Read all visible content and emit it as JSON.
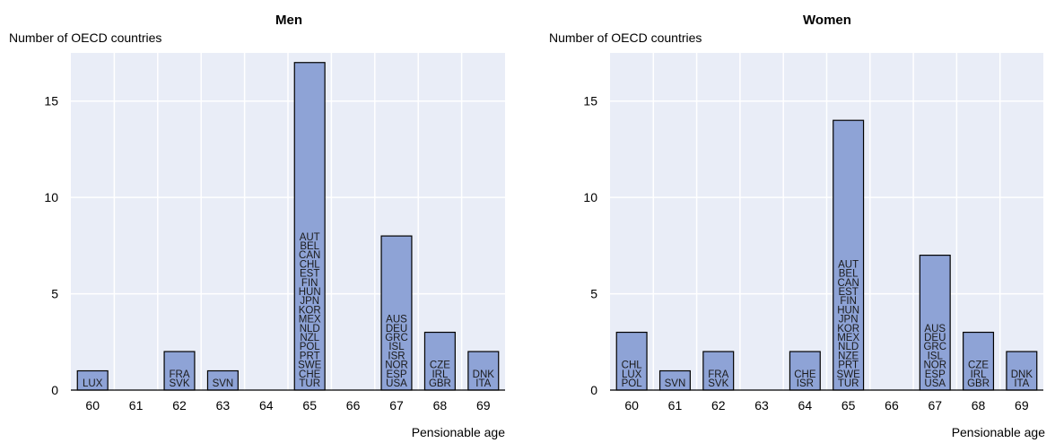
{
  "chart_data": [
    {
      "type": "bar",
      "title": "Men",
      "ylabel": "Number of OECD countries",
      "xlabel": "Pensionable age",
      "ylim": [
        0,
        17.5
      ],
      "yticks": [
        0,
        5,
        10,
        15
      ],
      "categories": [
        "60",
        "61",
        "62",
        "63",
        "64",
        "65",
        "66",
        "67",
        "68",
        "69"
      ],
      "values": [
        1,
        0,
        2,
        1,
        0,
        17,
        0,
        8,
        3,
        2
      ],
      "bar_labels": [
        [
          "LUX"
        ],
        [],
        [
          "FRA",
          "SVK"
        ],
        [
          "SVN"
        ],
        [],
        [
          "AUT",
          "BEL",
          "CAN",
          "CHL",
          "EST",
          "FIN",
          "HUN",
          "JPN",
          "KOR",
          "MEX",
          "NLD",
          "NZL",
          "POL",
          "PRT",
          "SWE",
          "CHE",
          "TUR"
        ],
        [],
        [
          "AUS",
          "DEU",
          "GRC",
          "ISL",
          "ISR",
          "NOR",
          "ESP",
          "USA"
        ],
        [
          "CZE",
          "IRL",
          "GBR"
        ],
        [
          "DNK",
          "ITA"
        ]
      ],
      "grid": true
    },
    {
      "type": "bar",
      "title": "Women",
      "ylabel": "Number of OECD countries",
      "xlabel": "Pensionable age",
      "ylim": [
        0,
        17.5
      ],
      "yticks": [
        0,
        5,
        10,
        15
      ],
      "categories": [
        "60",
        "61",
        "62",
        "63",
        "64",
        "65",
        "66",
        "67",
        "68",
        "69"
      ],
      "values": [
        3,
        1,
        2,
        0,
        2,
        14,
        0,
        7,
        3,
        2
      ],
      "bar_labels": [
        [
          "CHL",
          "LUX",
          "POL"
        ],
        [
          "SVN"
        ],
        [
          "FRA",
          "SVK"
        ],
        [],
        [
          "CHE",
          "ISR"
        ],
        [
          "AUT",
          "BEL",
          "CAN",
          "EST",
          "FIN",
          "HUN",
          "JPN",
          "KOR",
          "MEX",
          "NLD",
          "NZE",
          "PRT",
          "SWE",
          "TUR"
        ],
        [],
        [
          "AUS",
          "DEU",
          "GRC",
          "ISL",
          "NOR",
          "ESP",
          "USA"
        ],
        [
          "CZE",
          "IRL",
          "GBR"
        ],
        [
          "DNK",
          "ITA"
        ]
      ],
      "grid": true
    }
  ],
  "colors": {
    "plot_bg": "#e9edf7",
    "grid": "#ffffff",
    "bar_fill": "#8ea3d6",
    "bar_stroke": "#000000",
    "axis": "#000000"
  }
}
